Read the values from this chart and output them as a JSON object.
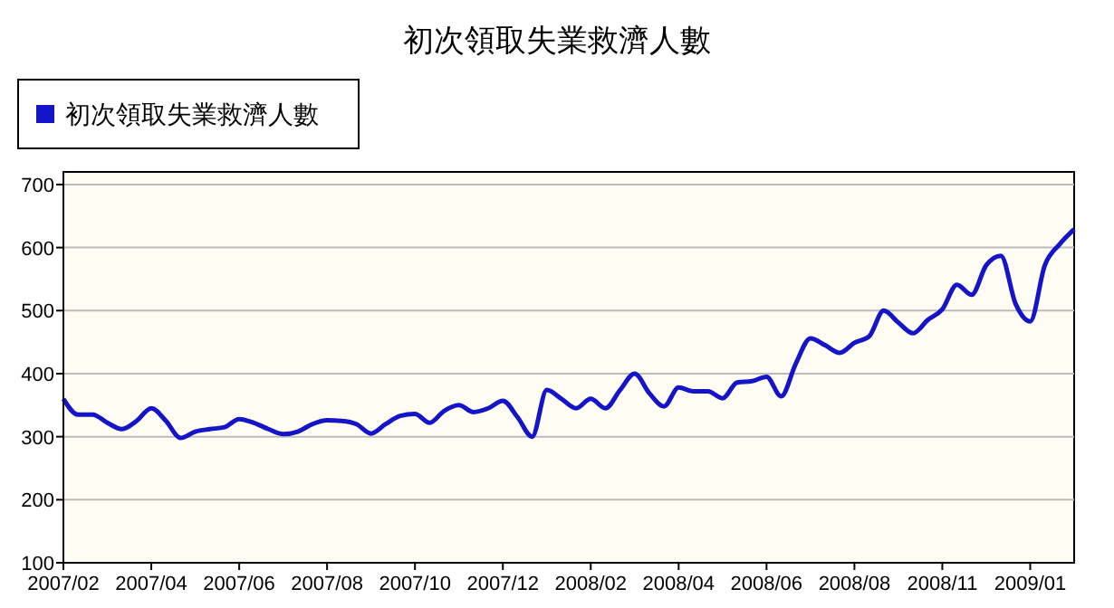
{
  "chart_data": {
    "type": "line",
    "title": "初次領取失業救濟人數",
    "categories": [
      "2007/02",
      null,
      null,
      null,
      null,
      null,
      "2007/04",
      null,
      null,
      null,
      null,
      null,
      "2007/06",
      null,
      null,
      null,
      null,
      null,
      "2007/08",
      null,
      null,
      null,
      null,
      null,
      "2007/10",
      null,
      null,
      null,
      null,
      null,
      "2007/12",
      null,
      null,
      null,
      null,
      null,
      "2008/02",
      null,
      null,
      null,
      null,
      null,
      "2008/04",
      null,
      null,
      null,
      null,
      null,
      "2008/06",
      null,
      null,
      null,
      null,
      null,
      "2008/08",
      null,
      null,
      null,
      null,
      null,
      "2008/11",
      null,
      null,
      null,
      null,
      null,
      "2009/01",
      null,
      null,
      null
    ],
    "series": [
      {
        "name": "初次領取失業救濟人數",
        "color": "#1414c8",
        "values": [
          360,
          335,
          335,
          322,
          312,
          325,
          345,
          325,
          298,
          308,
          312,
          315,
          328,
          322,
          312,
          304,
          308,
          320,
          326,
          325,
          320,
          305,
          320,
          333,
          336,
          322,
          341,
          350,
          339,
          345,
          357,
          331,
          300,
          374,
          360,
          345,
          360,
          345,
          374,
          400,
          369,
          348,
          378,
          372,
          372,
          361,
          386,
          388,
          395,
          364,
          416,
          456,
          445,
          433,
          449,
          459,
          500,
          481,
          464,
          485,
          502,
          541,
          525,
          572,
          587,
          511,
          483,
          572,
          605,
          629
        ]
      }
    ],
    "ylim": [
      100,
      720
    ],
    "yticks": [
      100,
      200,
      300,
      400,
      500,
      600,
      700
    ],
    "grid": "y",
    "legend": "top left",
    "marker": "none",
    "line_style": "solid"
  }
}
